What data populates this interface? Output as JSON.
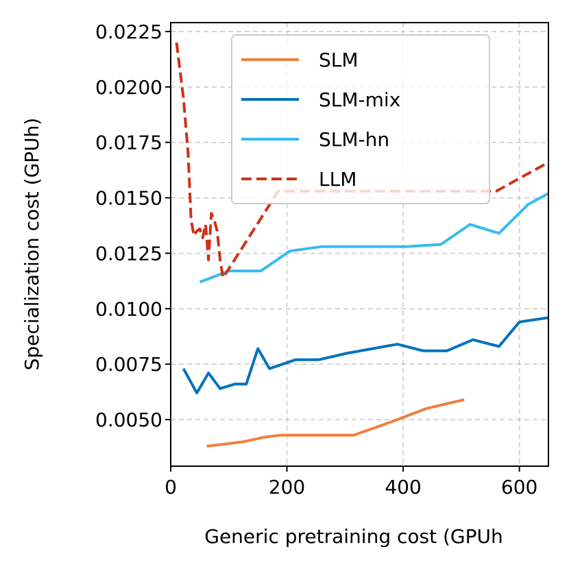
{
  "chart_data": {
    "type": "line",
    "xlabel": "Generic pretraining cost (GPUh",
    "ylabel": "Specialization cost (GPUh)",
    "xlim": [
      0,
      650
    ],
    "ylim": [
      0.0029,
      0.0229
    ],
    "xticks": [
      0,
      200,
      400,
      600
    ],
    "xtick_labels": [
      "0",
      "200",
      "400",
      "600"
    ],
    "yticks": [
      0.005,
      0.0075,
      0.01,
      0.0125,
      0.015,
      0.0175,
      0.02,
      0.0225
    ],
    "ytick_labels": [
      "0.0050",
      "0.0075",
      "0.0100",
      "0.0125",
      "0.0150",
      "0.0175",
      "0.0200",
      "0.0225"
    ],
    "grid": true,
    "legend_position": "top-right",
    "series": [
      {
        "name": "SLM",
        "color": "#f07f3c",
        "style": "solid",
        "x": [
          62,
          95,
          125,
          160,
          190,
          250,
          315,
          380,
          440,
          505
        ],
        "y": [
          0.0038,
          0.0039,
          0.004,
          0.0042,
          0.0043,
          0.0043,
          0.0043,
          0.0049,
          0.0055,
          0.0059
        ]
      },
      {
        "name": "SLM-mix",
        "color": "#0072bd",
        "style": "solid",
        "x": [
          22,
          45,
          65,
          85,
          110,
          130,
          150,
          170,
          215,
          255,
          305,
          390,
          435,
          475,
          520,
          565,
          600,
          650
        ],
        "y": [
          0.0073,
          0.0062,
          0.0071,
          0.0064,
          0.0066,
          0.0066,
          0.0082,
          0.0073,
          0.0077,
          0.0077,
          0.008,
          0.0084,
          0.0081,
          0.0081,
          0.0086,
          0.0083,
          0.0094,
          0.0096
        ]
      },
      {
        "name": "SLM-hn",
        "color": "#35bcec",
        "style": "solid",
        "x": [
          50,
          100,
          155,
          205,
          260,
          310,
          360,
          405,
          465,
          515,
          565,
          615,
          650
        ],
        "y": [
          0.0112,
          0.0117,
          0.0117,
          0.0126,
          0.0128,
          0.0128,
          0.0128,
          0.0128,
          0.0129,
          0.0138,
          0.0134,
          0.0147,
          0.0152
        ]
      },
      {
        "name": "LLM",
        "color": "#cc3316",
        "style": "dashed",
        "x": [
          10,
          22,
          30,
          35,
          40,
          45,
          50,
          55,
          60,
          65,
          70,
          75,
          80,
          85,
          90,
          100,
          185,
          560,
          650
        ],
        "y": [
          0.022,
          0.0195,
          0.017,
          0.014,
          0.0133,
          0.0135,
          0.0136,
          0.0132,
          0.0138,
          0.0122,
          0.0143,
          0.014,
          0.0135,
          0.0122,
          0.0114,
          0.0118,
          0.0153,
          0.0153,
          0.0166
        ]
      }
    ]
  }
}
